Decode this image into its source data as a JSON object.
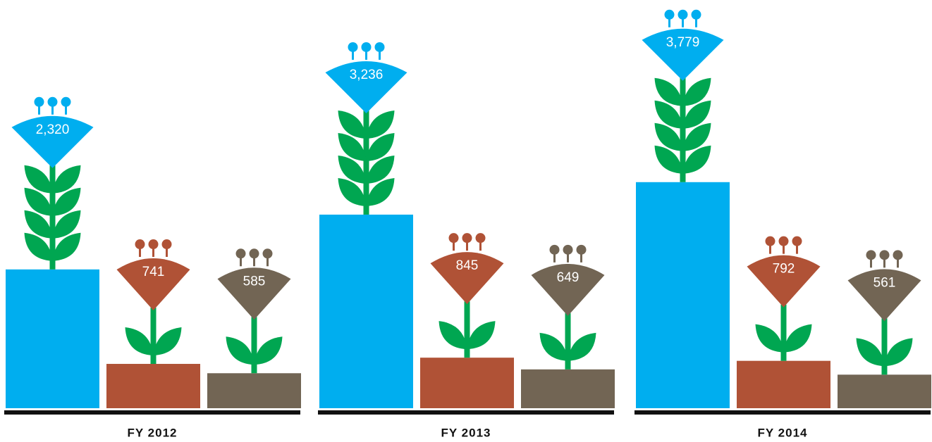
{
  "chart_data": {
    "type": "bar",
    "categories": [
      "FY 2012",
      "FY 2013",
      "FY 2014"
    ],
    "series": [
      {
        "color": "#00aeef",
        "values": [
          2320,
          3236,
          3779
        ],
        "value_labels": [
          "2,320",
          "3,236",
          "3,779"
        ]
      },
      {
        "color": "#b05236",
        "values": [
          741,
          845,
          792
        ]
      },
      {
        "color": "#726554",
        "values": [
          585,
          649,
          561
        ]
      }
    ]
  }
}
